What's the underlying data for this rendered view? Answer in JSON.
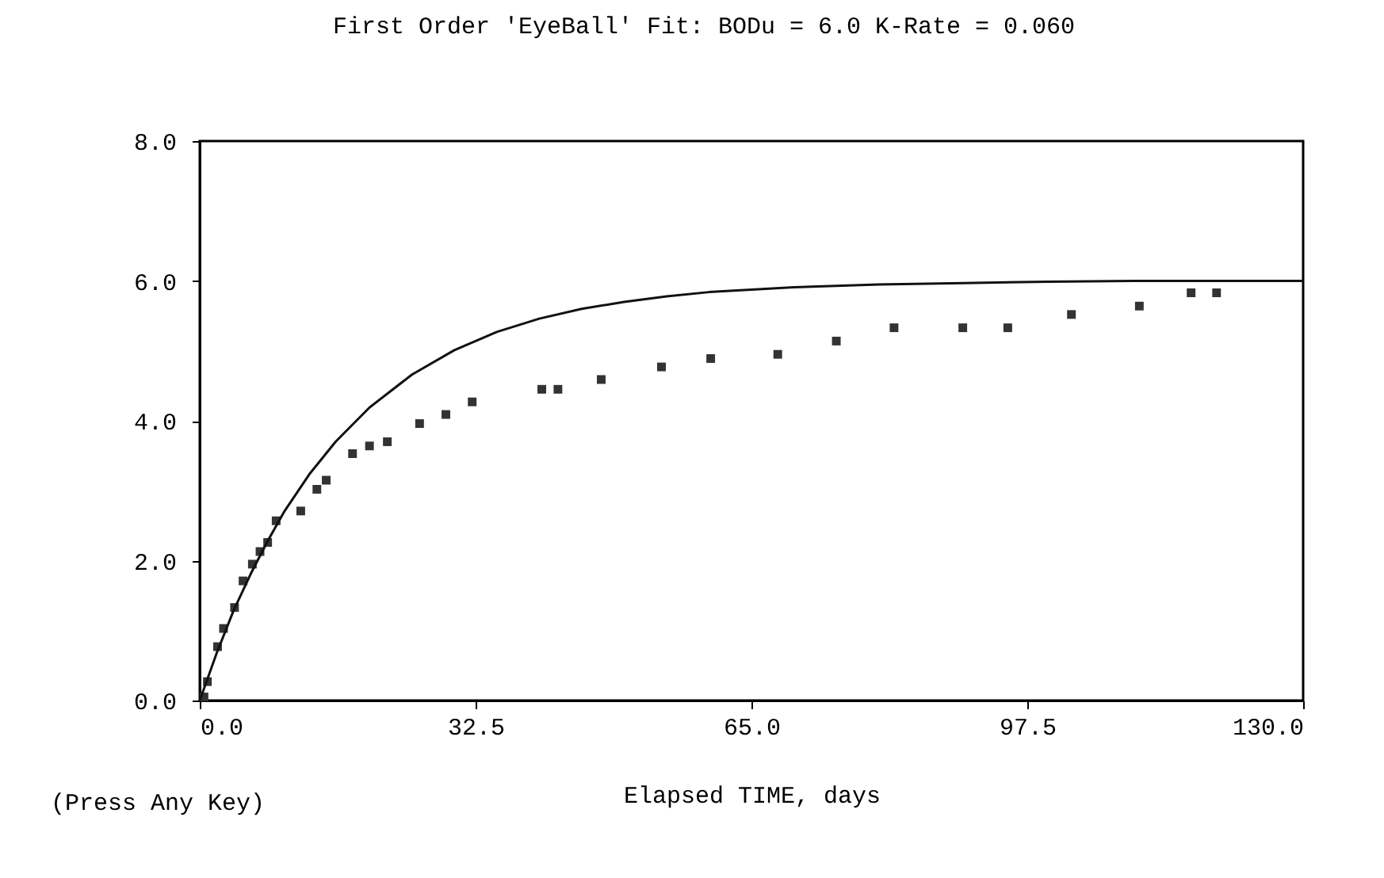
{
  "chart_data": {
    "type": "scatter",
    "title": "First Order 'EyeBall' Fit:   BODu =  6.0    K-Rate = 0.060",
    "xlabel": "Elapsed TIME, days",
    "annotations": [
      "(Press Any Key)"
    ],
    "xlim": [
      0,
      130
    ],
    "ylim": [
      0,
      8
    ],
    "xticks": [
      {
        "value": 0,
        "label": "0.0"
      },
      {
        "value": 32.5,
        "label": "32.5"
      },
      {
        "value": 65,
        "label": "65.0"
      },
      {
        "value": 97.5,
        "label": "97.5"
      },
      {
        "value": 130,
        "label": "130.0"
      }
    ],
    "yticks": [
      {
        "value": 0,
        "label": "0.0"
      },
      {
        "value": 2,
        "label": "2.0"
      },
      {
        "value": 4,
        "label": "4.0"
      },
      {
        "value": 6,
        "label": "6.0"
      },
      {
        "value": 8,
        "label": "8.0"
      }
    ],
    "grid": false,
    "series": [
      {
        "type": "scatter",
        "marker": "square",
        "color": "#333333",
        "x": [
          0.5,
          0.9,
          2.1,
          2.8,
          4.1,
          5.1,
          6.2,
          7.1,
          8.0,
          9.0,
          11.9,
          13.8,
          14.9,
          18.0,
          20.0,
          22.1,
          25.9,
          29.0,
          32.1,
          40.3,
          42.2,
          47.3,
          54.4,
          60.2,
          68.1,
          75.0,
          81.8,
          89.9,
          95.2,
          102.7,
          110.7,
          116.8,
          119.8
        ],
        "values": [
          0.05,
          0.27,
          0.77,
          1.03,
          1.33,
          1.71,
          1.95,
          2.13,
          2.26,
          2.57,
          2.71,
          3.02,
          3.15,
          3.53,
          3.64,
          3.7,
          3.96,
          4.09,
          4.27,
          4.45,
          4.45,
          4.59,
          4.77,
          4.89,
          4.95,
          5.14,
          5.33,
          5.33,
          5.33,
          5.52,
          5.64,
          5.83,
          5.83
        ]
      },
      {
        "type": "line",
        "marker": "none",
        "line_style": "solid",
        "color": "#111111",
        "x": [
          0,
          2,
          4,
          6,
          8,
          10,
          13,
          16,
          20,
          25,
          30,
          35,
          40,
          45,
          50,
          55,
          60,
          70,
          80,
          90,
          100,
          110,
          120,
          130
        ],
        "values": [
          0,
          0.68,
          1.29,
          1.81,
          2.28,
          2.71,
          3.25,
          3.7,
          4.19,
          4.66,
          5.01,
          5.27,
          5.46,
          5.6,
          5.7,
          5.78,
          5.84,
          5.91,
          5.95,
          5.97,
          5.99,
          6.0,
          6.0,
          6.0
        ]
      }
    ]
  }
}
